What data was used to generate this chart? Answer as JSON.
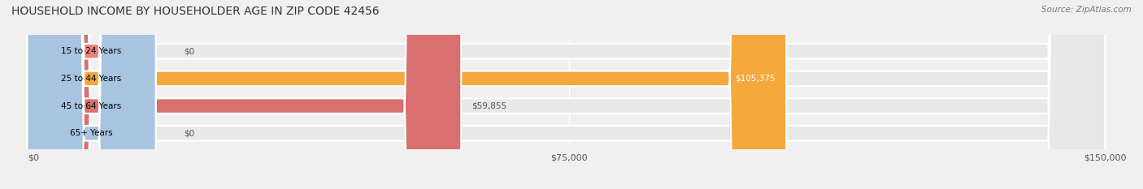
{
  "title": "HOUSEHOLD INCOME BY HOUSEHOLDER AGE IN ZIP CODE 42456",
  "source": "Source: ZipAtlas.com",
  "categories": [
    "15 to 24 Years",
    "25 to 44 Years",
    "45 to 64 Years",
    "65+ Years"
  ],
  "values": [
    0,
    105375,
    59855,
    0
  ],
  "bar_colors": [
    "#f08080",
    "#f5a83c",
    "#d87070",
    "#a8c4e0"
  ],
  "label_colors": [
    "#555555",
    "#ffffff",
    "#555555",
    "#555555"
  ],
  "xlim": [
    0,
    150000
  ],
  "xticks": [
    0,
    75000,
    150000
  ],
  "xticklabels": [
    "$0",
    "$75,000",
    "$150,000"
  ],
  "background_color": "#f0f0f0",
  "bar_bg_color": "#e8e8e8",
  "bar_height": 0.55,
  "figsize": [
    14.06,
    2.33
  ],
  "dpi": 100
}
